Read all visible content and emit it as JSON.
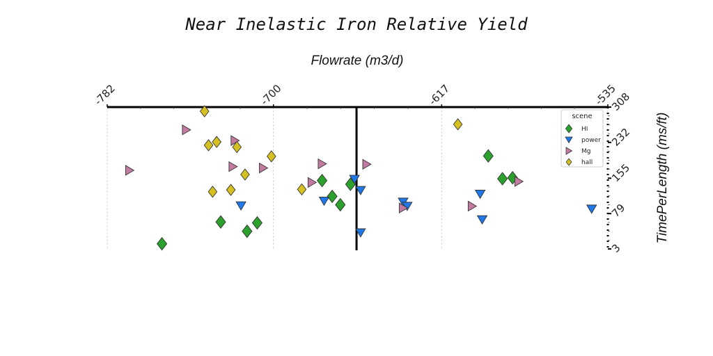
{
  "chart_data": {
    "type": "scatter",
    "title": "Near Inelastic Iron Relative Yield",
    "xlabel": "Flowrate (m3/d)",
    "ylabel": "TimePerLength (ms/ft)",
    "xlim": [
      -782,
      -535
    ],
    "ylim": [
      3,
      308
    ],
    "x_ticks": [
      -782,
      -700,
      -617,
      -535
    ],
    "x_tick_labels": [
      "-782",
      "-700",
      "-617",
      "-535"
    ],
    "y_ticks": [
      3,
      79,
      155,
      232,
      308
    ],
    "y_tick_labels": [
      "3",
      "79",
      "155",
      "232",
      "308"
    ],
    "x_axis_position": "top",
    "y_axis_position": "right",
    "grid": {
      "x": true,
      "y": false
    },
    "reference_line_x": -659,
    "legend": {
      "title": "scene",
      "placement": "top-right"
    },
    "series": [
      {
        "name": "HI",
        "marker": "diamond",
        "color": "#2ca02c",
        "points": [
          [
            -755,
            14
          ],
          [
            -726,
            61
          ],
          [
            -713,
            41
          ],
          [
            -708,
            59
          ],
          [
            -676,
            150
          ],
          [
            -671,
            116
          ],
          [
            -667,
            98
          ],
          [
            -662,
            142
          ],
          [
            -594,
            203
          ],
          [
            -587,
            154
          ],
          [
            -582,
            156
          ]
        ]
      },
      {
        "name": "power",
        "marker": "triangle-down",
        "color": "#1f77e8",
        "points": [
          [
            -716,
            96
          ],
          [
            -675,
            106
          ],
          [
            -660,
            153
          ],
          [
            -657,
            129
          ],
          [
            -657,
            38
          ],
          [
            -636,
            104
          ],
          [
            -634,
            95
          ],
          [
            -598,
            121
          ],
          [
            -597,
            66
          ],
          [
            -543,
            89
          ]
        ]
      },
      {
        "name": "Mg",
        "marker": "triangle-right",
        "color": "#c27ba0",
        "points": [
          [
            -771,
            172
          ],
          [
            -743,
            259
          ],
          [
            -719,
            236
          ],
          [
            -720,
            180
          ],
          [
            -705,
            177
          ],
          [
            -681,
            146
          ],
          [
            -676,
            186
          ],
          [
            -654,
            185
          ],
          [
            -636,
            91
          ],
          [
            -602,
            95
          ],
          [
            -579,
            148
          ]
        ]
      },
      {
        "name": "hall",
        "marker": "diamond",
        "color": "#d4c020",
        "points": [
          [
            -734,
            299
          ],
          [
            -732,
            226
          ],
          [
            -728,
            233
          ],
          [
            -730,
            126
          ],
          [
            -721,
            130
          ],
          [
            -718,
            222
          ],
          [
            -714,
            163
          ],
          [
            -701,
            202
          ],
          [
            -686,
            131
          ],
          [
            -609,
            271
          ]
        ]
      }
    ]
  }
}
